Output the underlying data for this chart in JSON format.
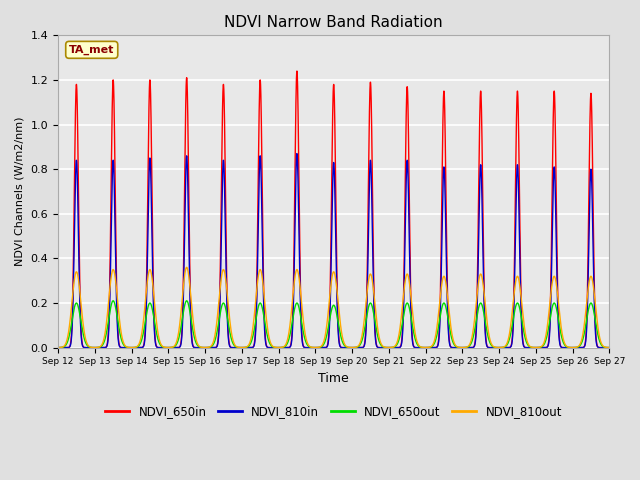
{
  "title": "NDVI Narrow Band Radiation",
  "xlabel": "Time",
  "ylabel": "NDVI Channels (W/m2/nm)",
  "ylim": [
    0,
    1.4
  ],
  "background_color": "#e0e0e0",
  "plot_bg_color": "#e8e8e8",
  "grid_color": "white",
  "legend_label_color": "#8B0000",
  "annotation_text": "TA_met",
  "annotation_box_color": "#ffffcc",
  "annotation_border_color": "#aa8800",
  "colors": {
    "NDVI_650in": "#ff0000",
    "NDVI_810in": "#0000cc",
    "NDVI_650out": "#00dd00",
    "NDVI_810out": "#ffaa00"
  },
  "legend_entries": [
    "NDVI_650in",
    "NDVI_810in",
    "NDVI_650out",
    "NDVI_810out"
  ],
  "x_tick_labels": [
    "Sep 12",
    "Sep 13",
    "Sep 14",
    "Sep 15",
    "Sep 16",
    "Sep 17",
    "Sep 18",
    "Sep 19",
    "Sep 20",
    "Sep 21",
    "Sep 22",
    "Sep 23",
    "Sep 24",
    "Sep 25",
    "Sep 26",
    "Sep 27"
  ],
  "num_days": 15,
  "peaks_650in": [
    1.18,
    1.2,
    1.2,
    1.21,
    1.18,
    1.2,
    1.24,
    1.18,
    1.19,
    1.17,
    1.15,
    1.15,
    1.15,
    1.15,
    1.14
  ],
  "peaks_810in": [
    0.84,
    0.84,
    0.85,
    0.86,
    0.84,
    0.86,
    0.87,
    0.83,
    0.84,
    0.84,
    0.81,
    0.82,
    0.82,
    0.81,
    0.8
  ],
  "peaks_650out": [
    0.2,
    0.21,
    0.2,
    0.21,
    0.2,
    0.2,
    0.2,
    0.19,
    0.2,
    0.2,
    0.2,
    0.2,
    0.2,
    0.2,
    0.2
  ],
  "peaks_810out": [
    0.34,
    0.35,
    0.35,
    0.36,
    0.35,
    0.35,
    0.35,
    0.34,
    0.33,
    0.33,
    0.32,
    0.33,
    0.32,
    0.32,
    0.32
  ],
  "sigma_narrow": 0.055,
  "sigma_wide": 0.12,
  "figsize": [
    6.4,
    4.8
  ],
  "dpi": 100
}
